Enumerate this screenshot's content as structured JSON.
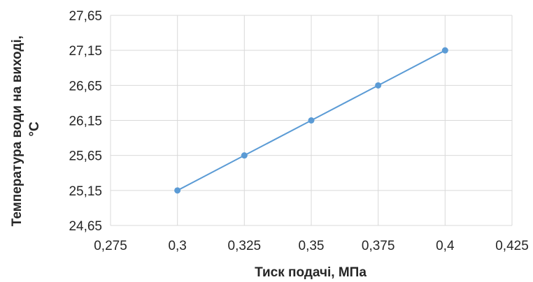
{
  "chart_data": {
    "type": "scatter",
    "x": [
      0.3,
      0.325,
      0.35,
      0.375,
      0.4
    ],
    "y": [
      25.15,
      25.65,
      26.15,
      26.65,
      27.15
    ],
    "xlim": [
      0.275,
      0.425
    ],
    "ylim": [
      24.65,
      27.65
    ],
    "x_ticks": [
      "0,275",
      "0,3",
      "0,325",
      "0,35",
      "0,375",
      "0,4",
      "0,425"
    ],
    "y_ticks": [
      "27,65",
      "27,15",
      "26,65",
      "26,15",
      "25,65",
      "25,15",
      "24,65"
    ],
    "xlabel": "Тиск подачі, МПа",
    "ylabel_lines": [
      "Температура води на виході,",
      "°С"
    ],
    "series_color": "#5b9bd5",
    "grid": true,
    "legend": "none"
  }
}
